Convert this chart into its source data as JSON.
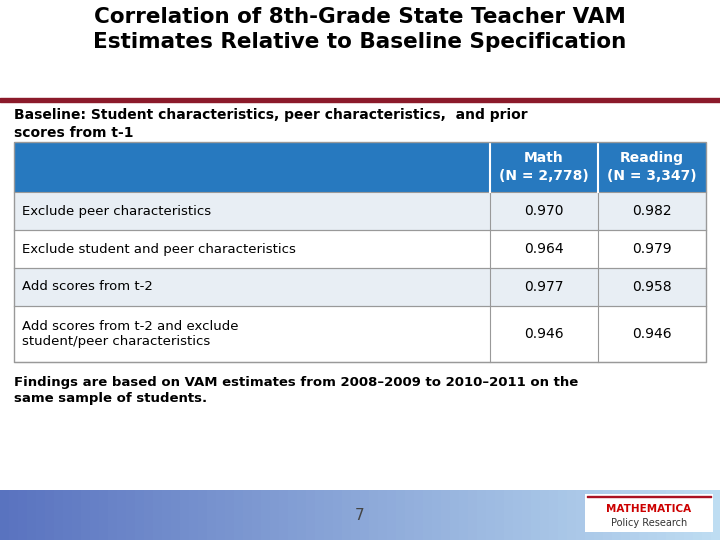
{
  "title_line1": "Correlation of 8th-Grade State Teacher VAM",
  "title_line2": "Estimates Relative to Baseline Specification",
  "baseline_text_line1": "Baseline: Student characteristics, peer characteristics,  and prior",
  "baseline_text_line2": "scores from t-1",
  "col_headers": [
    "Math\n(N = 2,778)",
    "Reading\n(N = 3,347)"
  ],
  "row_labels": [
    "Exclude peer characteristics",
    "Exclude student and peer characteristics",
    "Add scores from t-2",
    "Add scores from t-2 and exclude\nstudent/peer characteristics"
  ],
  "math_values": [
    "0.970",
    "0.964",
    "0.977",
    "0.946"
  ],
  "reading_values": [
    "0.982",
    "0.979",
    "0.958",
    "0.946"
  ],
  "header_bg_color": "#2779BF",
  "header_text_color": "#FFFFFF",
  "row_colors": [
    "#E8EEF4",
    "#FFFFFF",
    "#E8EEF4",
    "#FFFFFF"
  ],
  "row_text_color": "#000000",
  "title_color": "#000000",
  "table_border_color": "#999999",
  "footnote_line1": "Findings are based on VAM estimates from 2008–2009 to 2010–2011 on the",
  "footnote_line2": "same sample of students.",
  "page_number": "7",
  "title_bar_color": "#8B1A2A",
  "bg_color": "#FFFFFF",
  "bottom_bar_color": "#C8D8E8",
  "logo_text_color": "#CC0000",
  "logo_sub_color": "#333333"
}
